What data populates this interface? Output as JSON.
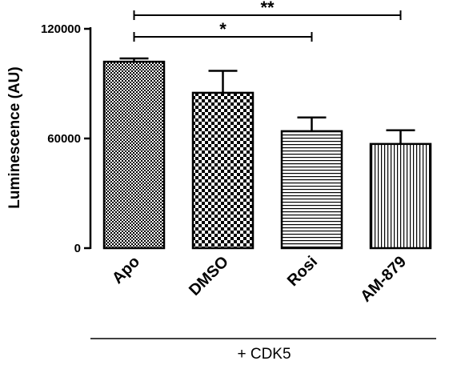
{
  "chart_data": {
    "type": "bar",
    "categories": [
      "Apo",
      "DMSO",
      "Rosi",
      "AM-879"
    ],
    "values": [
      102000,
      85000,
      64000,
      57000
    ],
    "errors": [
      1800,
      12000,
      7500,
      7500
    ],
    "ylabel": "Luminescence (AU)",
    "xlabel": "",
    "group_label": "+ CDK5",
    "ylim": [
      0,
      120000
    ],
    "yticks": [
      0,
      60000,
      120000
    ],
    "ytick_labels": [
      "0",
      "60000",
      "120000"
    ],
    "grid": false,
    "legend": "none",
    "patterns": [
      "fine-checker",
      "checker",
      "horizontal-lines",
      "vertical-lines"
    ],
    "significance": [
      {
        "from": "Apo",
        "to": "Rosi",
        "label": "*"
      },
      {
        "from": "Apo",
        "to": "AM-879",
        "label": "**"
      }
    ]
  }
}
